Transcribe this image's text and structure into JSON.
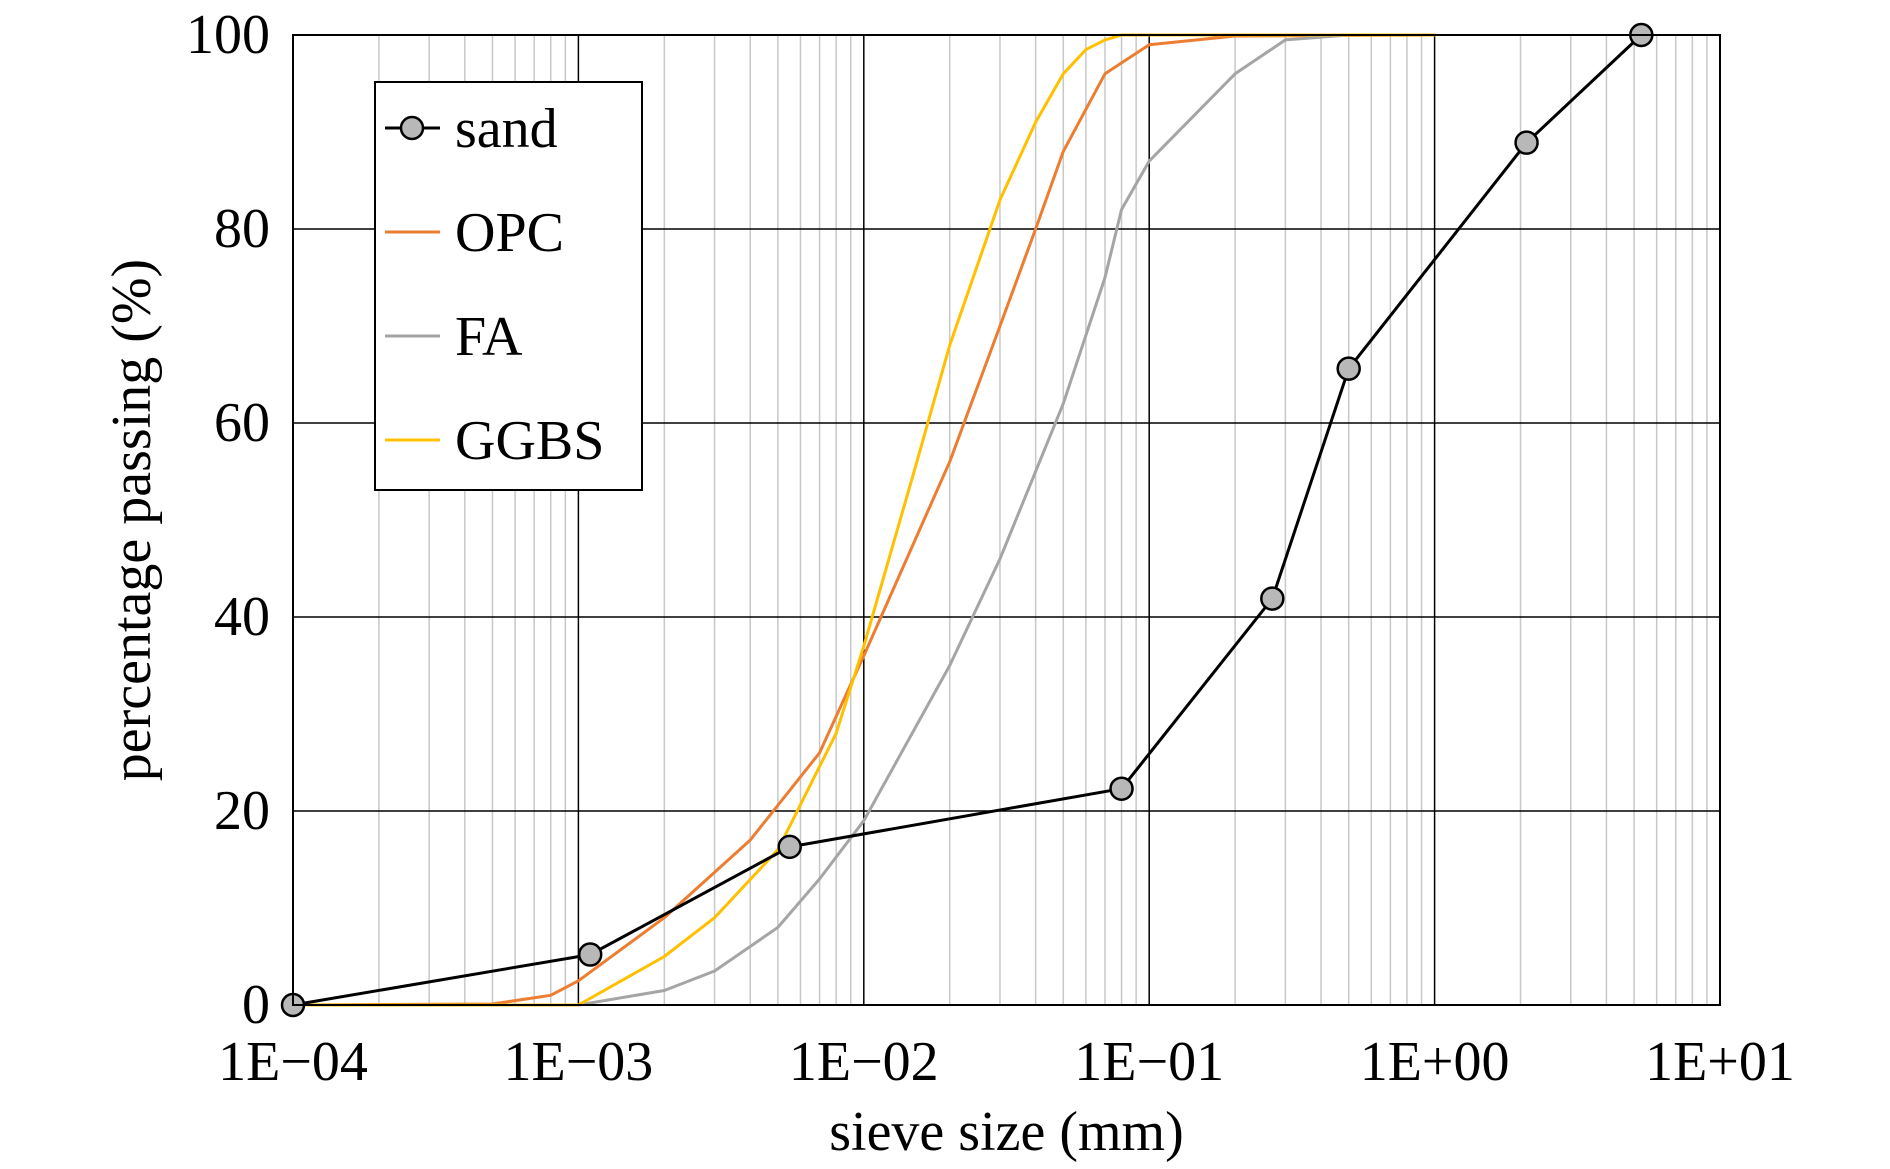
{
  "chart_data": {
    "type": "line",
    "title": "",
    "xlabel": "sieve size (mm)",
    "ylabel": "percentage passing (%)",
    "x_scale": "log",
    "xlim": [
      0.0001,
      10
    ],
    "ylim": [
      0,
      100
    ],
    "x_tick_values": [
      0.0001,
      0.001,
      0.01,
      0.1,
      1,
      10
    ],
    "x_tick_labels": [
      "1E−04",
      "1E−03",
      "1E−02",
      "1E−01",
      "1E+00",
      "1E+01"
    ],
    "y_tick_values": [
      0,
      20,
      40,
      60,
      80,
      100
    ],
    "y_tick_labels": [
      "0",
      "20",
      "40",
      "60",
      "80",
      "100"
    ],
    "grid": true,
    "legend_position": "top-left",
    "series": [
      {
        "name": "sand",
        "color": "#000000",
        "marker": "circle",
        "marker_fill": "#b8b8b8",
        "points": [
          [
            0.0001,
            0
          ],
          [
            0.0011,
            5.2
          ],
          [
            0.0055,
            16.3
          ],
          [
            0.08,
            22.3
          ],
          [
            0.27,
            41.9
          ],
          [
            0.5,
            65.6
          ],
          [
            2.1,
            88.9
          ],
          [
            5.3,
            100
          ]
        ]
      },
      {
        "name": "OPC",
        "color": "#ed7d31",
        "marker": "none",
        "points": [
          [
            0.0001,
            0
          ],
          [
            0.0005,
            0.1
          ],
          [
            0.0008,
            1
          ],
          [
            0.001,
            2.5
          ],
          [
            0.002,
            9
          ],
          [
            0.004,
            17
          ],
          [
            0.007,
            26
          ],
          [
            0.01,
            36
          ],
          [
            0.02,
            56
          ],
          [
            0.03,
            70
          ],
          [
            0.04,
            80
          ],
          [
            0.05,
            88
          ],
          [
            0.07,
            96
          ],
          [
            0.1,
            99
          ],
          [
            0.2,
            99.9
          ],
          [
            1,
            100
          ]
        ]
      },
      {
        "name": "FA",
        "color": "#a5a5a5",
        "marker": "none",
        "points": [
          [
            0.0001,
            0
          ],
          [
            0.001,
            0
          ],
          [
            0.002,
            1.5
          ],
          [
            0.003,
            3.5
          ],
          [
            0.005,
            8
          ],
          [
            0.007,
            13
          ],
          [
            0.01,
            19
          ],
          [
            0.02,
            35
          ],
          [
            0.03,
            46
          ],
          [
            0.05,
            62
          ],
          [
            0.07,
            75
          ],
          [
            0.08,
            82
          ],
          [
            0.1,
            87
          ],
          [
            0.2,
            96
          ],
          [
            0.3,
            99.5
          ],
          [
            0.5,
            100
          ],
          [
            1,
            100
          ]
        ]
      },
      {
        "name": "GGBS",
        "color": "#ffc000",
        "marker": "none",
        "points": [
          [
            0.0001,
            0
          ],
          [
            0.001,
            0
          ],
          [
            0.002,
            5
          ],
          [
            0.003,
            9
          ],
          [
            0.005,
            16
          ],
          [
            0.008,
            28
          ],
          [
            0.01,
            37
          ],
          [
            0.015,
            55
          ],
          [
            0.02,
            68
          ],
          [
            0.03,
            83
          ],
          [
            0.04,
            91
          ],
          [
            0.05,
            96
          ],
          [
            0.06,
            98.5
          ],
          [
            0.07,
            99.5
          ],
          [
            0.08,
            100
          ],
          [
            1,
            100
          ]
        ]
      }
    ]
  }
}
